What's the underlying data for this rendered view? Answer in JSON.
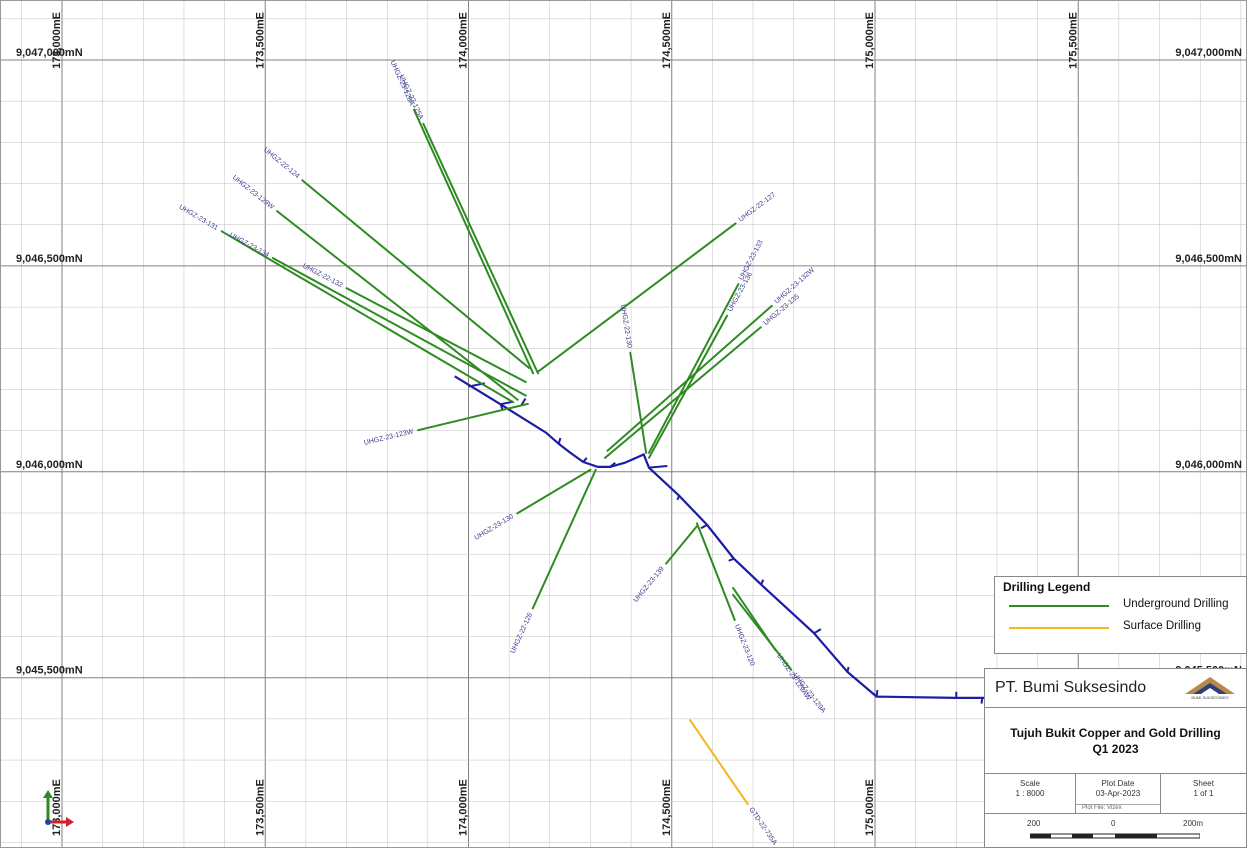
{
  "map": {
    "easting_labels": [
      "173,000mE",
      "173,500mE",
      "174,000mE",
      "174,500mE",
      "175,000mE",
      "175,500mE"
    ],
    "northing_labels": [
      "9,047,000mN",
      "9,046,500mN",
      "9,046,000mN",
      "9,045,500mN"
    ],
    "colors": {
      "underground": "#2e8b22",
      "surface": "#f2b81c",
      "decline": "#1c1ca6",
      "grid": "#bfbfbf",
      "grid_major": "#808080",
      "label": "#3b3b8f"
    }
  },
  "drill_holes": [
    {
      "label": "UHGZ-22-124",
      "type": "underground",
      "from": [
        174149,
        9046252
      ],
      "to": [
        173591,
        9046708
      ]
    },
    {
      "label": "UHGZ-22-125A",
      "type": "underground",
      "from": [
        174171,
        9046239
      ],
      "to": [
        173889,
        9046845
      ]
    },
    {
      "label": "UHGZ-23-128A",
      "type": "underground",
      "from": [
        174159,
        9046239
      ],
      "to": [
        173866,
        9046879
      ]
    },
    {
      "label": "UHGZ-23-129W",
      "type": "underground",
      "from": [
        174121,
        9046175
      ],
      "to": [
        173529,
        9046633
      ]
    },
    {
      "label": "UHGZ-23-131",
      "type": "underground",
      "from": [
        174110,
        9046169
      ],
      "to": [
        173393,
        9046584
      ]
    },
    {
      "label": "UHGZ-23-134",
      "type": "underground",
      "from": [
        174141,
        9046185
      ],
      "to": [
        173519,
        9046519
      ]
    },
    {
      "label": "UHGZ-22-132",
      "type": "underground",
      "from": [
        174141,
        9046218
      ],
      "to": [
        173700,
        9046446
      ]
    },
    {
      "label": "UHGZ-22-127",
      "type": "underground",
      "from": [
        174171,
        9046243
      ],
      "to": [
        174657,
        9046603
      ]
    },
    {
      "label": "UHGZ-22-130",
      "type": "underground",
      "from": [
        174437,
        9046046
      ],
      "to": [
        174398,
        9046289
      ]
    },
    {
      "label": "UHGZ-23-133",
      "type": "underground",
      "from": [
        174444,
        9046046
      ],
      "to": [
        174664,
        9046456
      ]
    },
    {
      "label": "UHGZ-23-136",
      "type": "underground",
      "from": [
        174444,
        9046034
      ],
      "to": [
        174636,
        9046379
      ]
    },
    {
      "label": "UHGZ-23-132W",
      "type": "underground",
      "from": [
        174342,
        9046051
      ],
      "to": [
        174746,
        9046403
      ]
    },
    {
      "label": "UHGZ-23-135",
      "type": "underground",
      "from": [
        174336,
        9046034
      ],
      "to": [
        174719,
        9046351
      ]
    },
    {
      "label": "UHGZ-23-123W",
      "type": "underground",
      "from": [
        174146,
        9046165
      ],
      "to": [
        173876,
        9046101
      ]
    },
    {
      "label": "UHGZ-23-130",
      "type": "underground",
      "from": [
        174300,
        9046005
      ],
      "to": [
        174120,
        9045899
      ]
    },
    {
      "label": "UHGZ-22-126",
      "type": "underground",
      "from": [
        174313,
        9046005
      ],
      "to": [
        174158,
        9045668
      ]
    },
    {
      "label": "UHGZ-23-139",
      "type": "underground",
      "from": [
        174562,
        9045868
      ],
      "to": [
        174486,
        9045777
      ]
    },
    {
      "label": "UHGZ-23-120",
      "type": "underground",
      "from": [
        174562,
        9045875
      ],
      "to": [
        174655,
        9045640
      ]
    },
    {
      "label": "UHGZ-23-129AW",
      "type": "underground",
      "from": [
        174651,
        9045718
      ],
      "to": [
        174755,
        9045567
      ]
    },
    {
      "label": "UHGZ-23-129A",
      "type": "underground",
      "from": [
        174651,
        9045701
      ],
      "to": [
        174794,
        9045519
      ]
    },
    {
      "label": "GTD-22-735A",
      "type": "surface",
      "from": [
        174545,
        9045397
      ],
      "to": [
        174687,
        9045193
      ]
    }
  ],
  "legend": {
    "title": "Drilling Legend",
    "items": [
      {
        "label": "Underground Drilling",
        "color": "#2e8b22"
      },
      {
        "label": "Surface Drilling",
        "color": "#f2b81c"
      }
    ]
  },
  "title_block": {
    "company": "PT. Bumi Suksesindo",
    "logo_text": "BUMI SUKSESINDO",
    "project_title": "Tujuh Bukit Copper and Gold Drilling",
    "project_period": "Q1 2023",
    "scale_header": "Scale",
    "scale_value": "1 : 8000",
    "plot_date_header": "Plot Date",
    "plot_date_value": "03-Apr-2023",
    "sheet_header": "Sheet",
    "sheet_value": "1 of 1",
    "plot_file": "Plot File: Vizex",
    "scalebar_left": "200",
    "scalebar_mid": "0",
    "scalebar_right": "200m"
  }
}
